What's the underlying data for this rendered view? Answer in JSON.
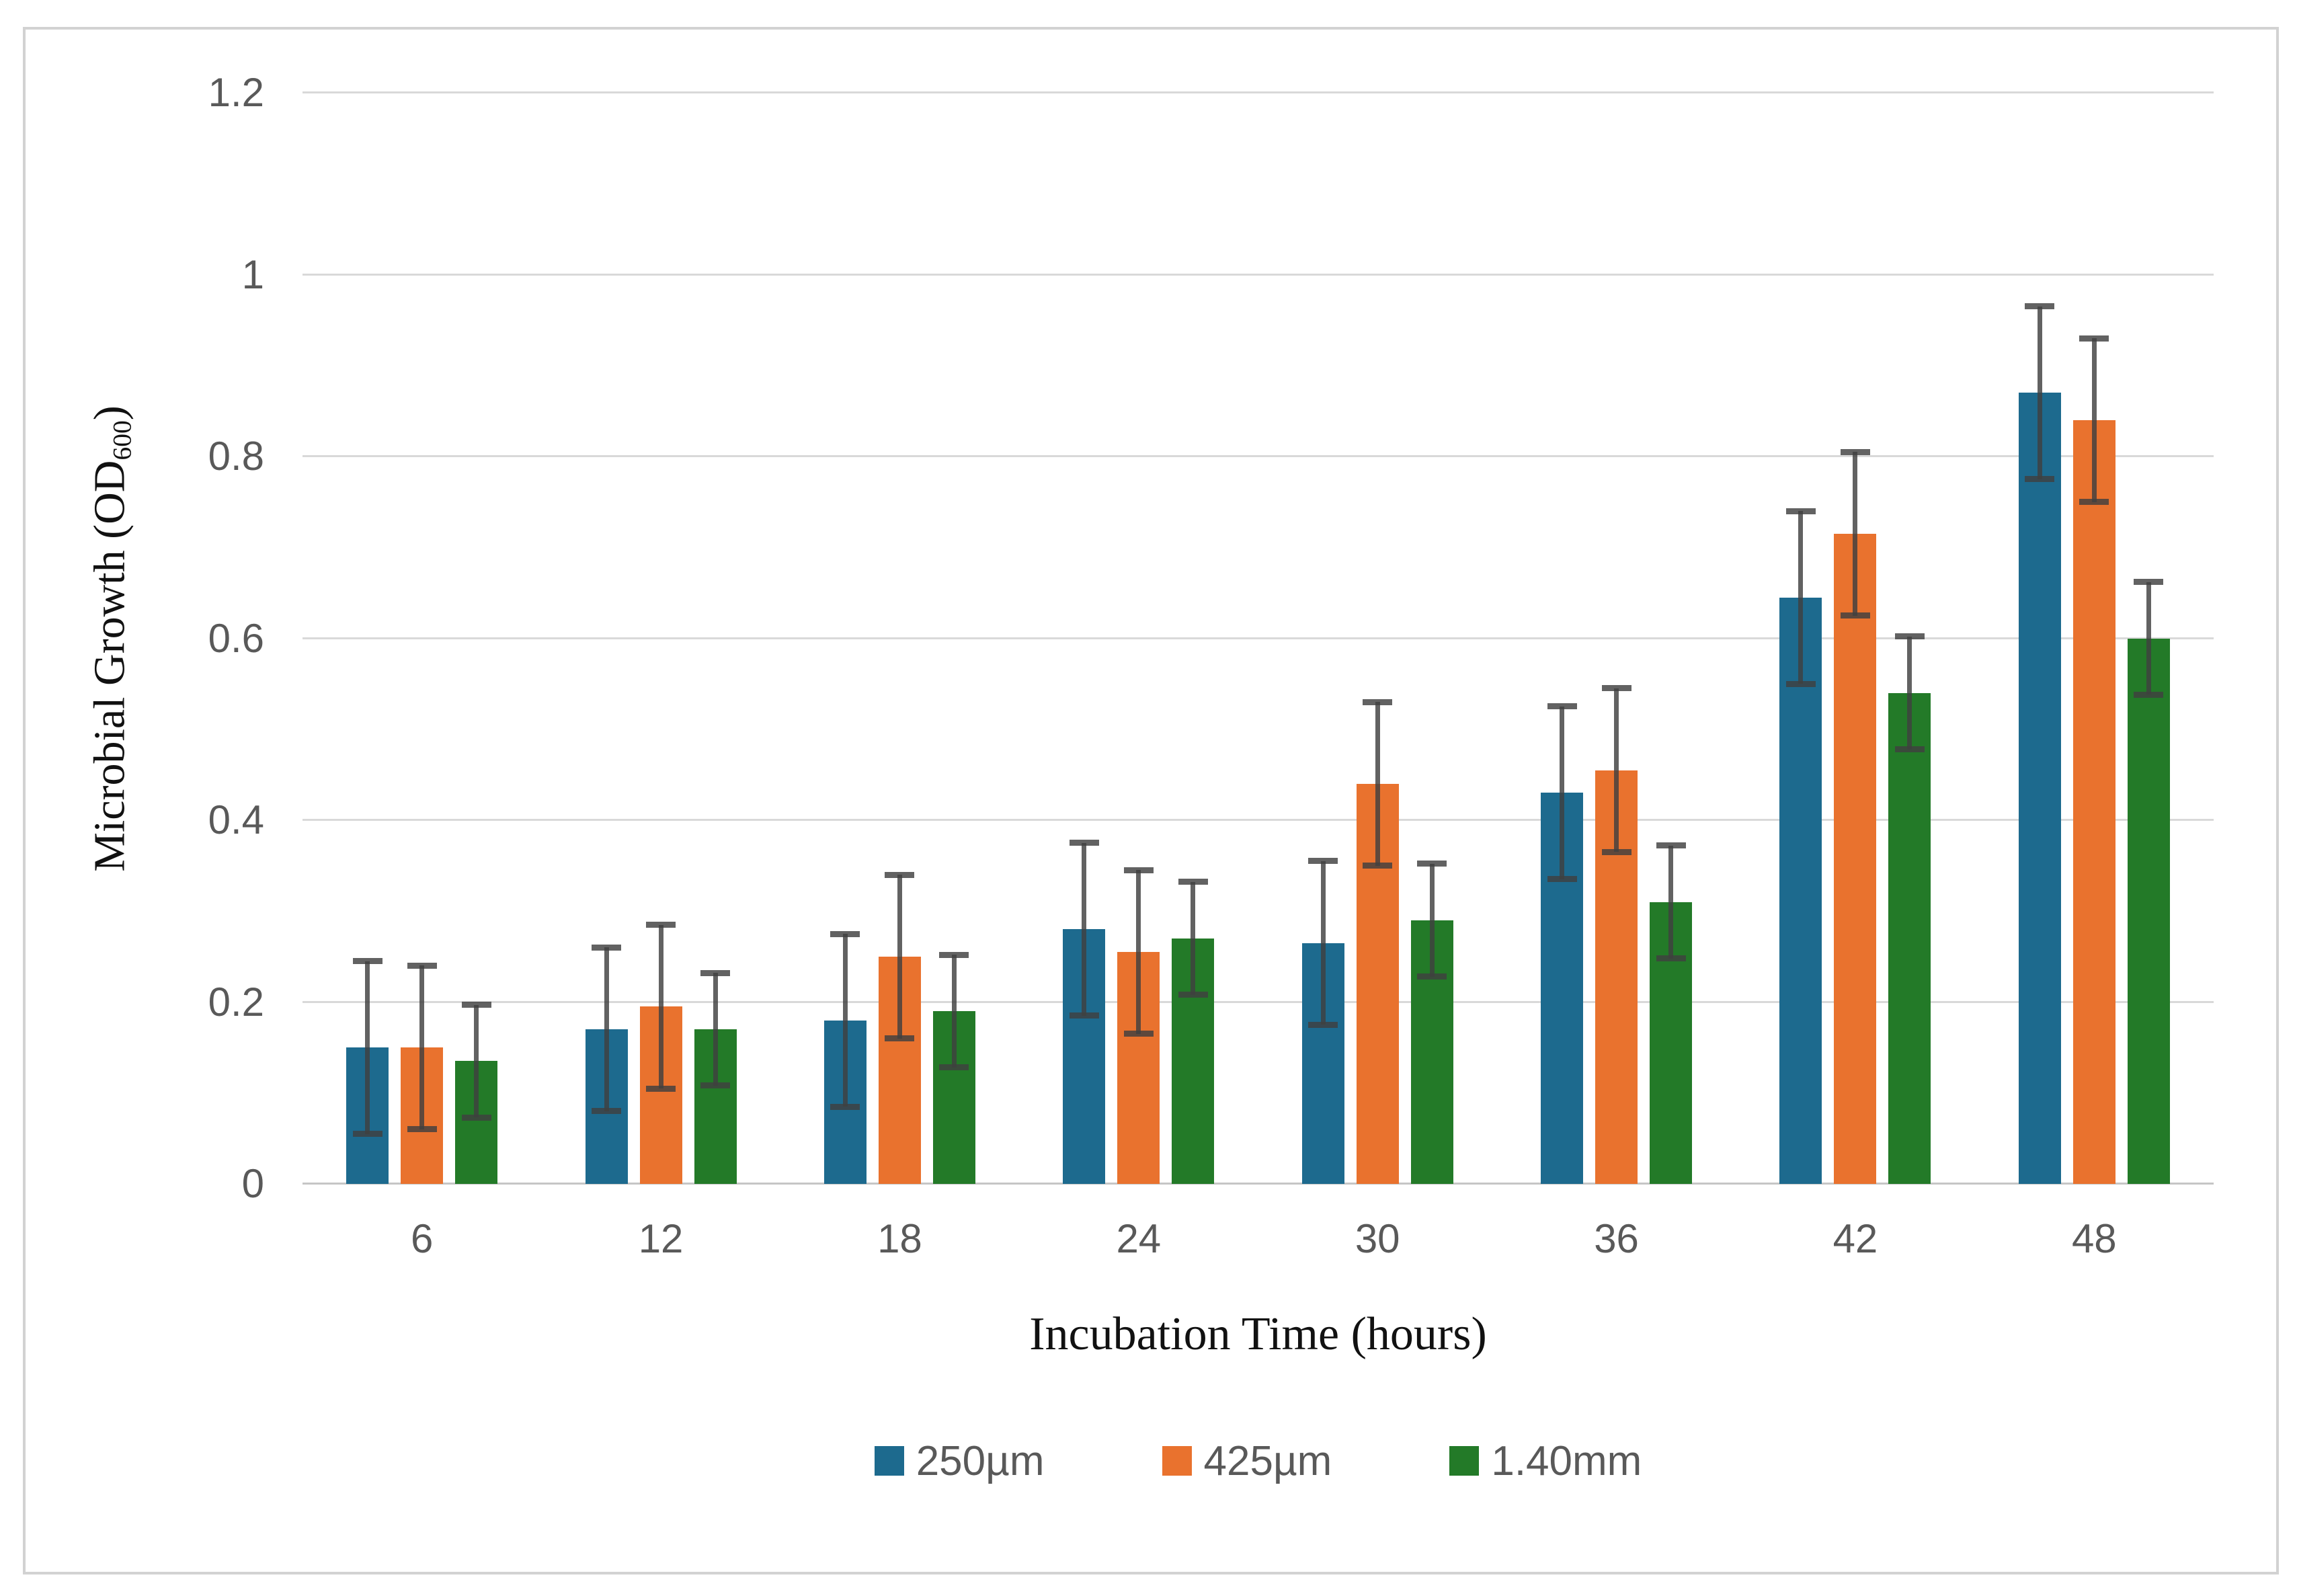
{
  "figure": {
    "frame_color": "#d2d2d2",
    "background": "#ffffff",
    "gridline_color": "#d9d9d9",
    "axis_line_color": "#c6c6c6",
    "tick_label_color": "#595959",
    "error_bar_color": "#404040"
  },
  "chart_data": {
    "type": "bar",
    "title": "",
    "xlabel": "Incubation Time (hours)",
    "ylabel_main": "Microbial Growth (OD",
    "ylabel_sub": "600",
    "ylabel_end": ")",
    "categories": [
      "6",
      "12",
      "18",
      "24",
      "30",
      "36",
      "42",
      "48"
    ],
    "ylim": [
      0,
      1.2
    ],
    "ytick_step": 0.2,
    "ytick_labels": [
      "0",
      "0.2",
      "0.4",
      "0.6",
      "0.8",
      "1",
      "1.2"
    ],
    "grid": true,
    "legend_position": "bottom",
    "series": [
      {
        "name": "250µm",
        "color": "#1d6a8e",
        "values": [
          0.15,
          0.17,
          0.18,
          0.28,
          0.265,
          0.43,
          0.645,
          0.87
        ],
        "errors": [
          0.095,
          0.09,
          0.095,
          0.095,
          0.09,
          0.095,
          0.095,
          0.095
        ]
      },
      {
        "name": "425µm",
        "color": "#e9722e",
        "values": [
          0.15,
          0.195,
          0.25,
          0.255,
          0.44,
          0.455,
          0.715,
          0.84
        ],
        "errors": [
          0.09,
          0.09,
          0.09,
          0.09,
          0.09,
          0.09,
          0.09,
          0.09
        ]
      },
      {
        "name": "1.40mm",
        "color": "#237a28",
        "values": [
          0.135,
          0.17,
          0.19,
          0.27,
          0.29,
          0.31,
          0.54,
          0.6
        ],
        "errors": [
          0.062,
          0.062,
          0.062,
          0.062,
          0.062,
          0.062,
          0.062,
          0.062
        ]
      }
    ]
  }
}
